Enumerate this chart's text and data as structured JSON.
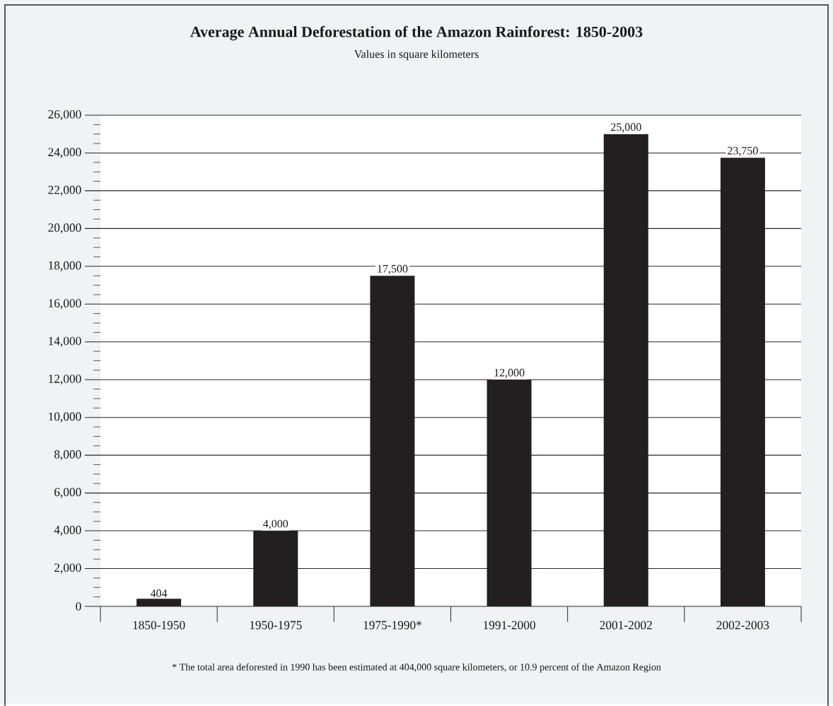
{
  "chart_data": {
    "type": "bar",
    "title": "Average Annual Deforestation of the Amazon Rainforest: 1850-2003",
    "subtitle": "Values in square kilometers",
    "categories": [
      "1850-1950",
      "1950-1975",
      "1975-1990*",
      "1991-2000",
      "2001-2002",
      "2002-2003"
    ],
    "values": [
      404,
      4000,
      17500,
      12000,
      25000,
      23750
    ],
    "value_labels": [
      "404",
      "4,000",
      "17,500",
      "12,000",
      "25,000",
      "23,750"
    ],
    "color": "#231f20",
    "ylim": [
      0,
      26000
    ],
    "yticks": [
      0,
      {
        "value": 2000,
        "label": "2,000"
      },
      {
        "value": 4000,
        "label": "4,000"
      },
      {
        "value": 6000,
        "label": "6,000"
      },
      {
        "value": 8000,
        "label": "8,000"
      },
      {
        "value": 10000,
        "label": "10,000"
      },
      {
        "value": 12000,
        "label": "12,000"
      },
      {
        "value": 14000,
        "label": "14,000"
      },
      {
        "value": 16000,
        "label": "16,000"
      },
      {
        "value": 18000,
        "label": "18,000"
      },
      {
        "value": 20000,
        "label": "20,000"
      },
      {
        "value": 22000,
        "label": "22,000"
      },
      {
        "value": 24000,
        "label": "24,000"
      },
      {
        "value": 26000,
        "label": "26,000"
      }
    ],
    "grid": "y",
    "annotations": [
      "* The total area deforested in 1990 has been estimated at 404,000 square kilometers, or 10.9 percent of the Amazon Region"
    ]
  }
}
